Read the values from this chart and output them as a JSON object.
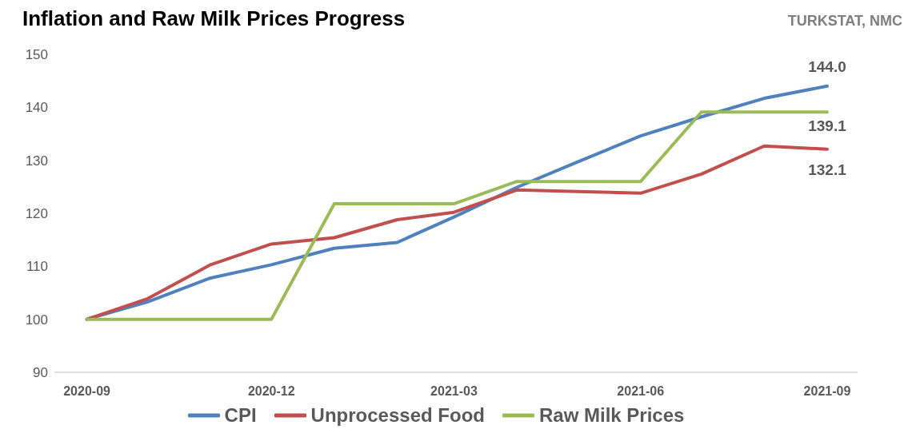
{
  "chart_data": {
    "type": "line",
    "title": "Inflation and Raw Milk Prices Progress",
    "annotations": [
      "TURKSTAT, NMC"
    ],
    "x": [
      "2020-09",
      "2020-10",
      "2020-11",
      "2020-12",
      "2021-01",
      "2021-02",
      "2021-03",
      "2021-04",
      "2021-05",
      "2021-06",
      "2021-07",
      "2021-08",
      "2021-09"
    ],
    "series": [
      {
        "name": "CPI",
        "color": "#4f81bd",
        "values": [
          100,
          103.3,
          107.8,
          110.3,
          113.4,
          114.5,
          119.3,
          124.9,
          129.7,
          134.6,
          138.2,
          141.7,
          144.0
        ],
        "value_labels": [
          null,
          null,
          null,
          null,
          null,
          null,
          null,
          null,
          null,
          null,
          null,
          null,
          "144.0"
        ]
      },
      {
        "name": "Unprocessed Food",
        "color": "#c0504d",
        "values": [
          100,
          103.9,
          110.3,
          114.2,
          115.4,
          118.8,
          120.2,
          124.4,
          124.1,
          123.8,
          127.4,
          132.7,
          132.1
        ],
        "value_labels": [
          null,
          null,
          null,
          null,
          null,
          null,
          null,
          null,
          null,
          null,
          null,
          null,
          "132.1"
        ]
      },
      {
        "name": "Raw Milk Prices",
        "color": "#9bbb59",
        "values": [
          100,
          100,
          100,
          100,
          121.8,
          121.8,
          121.8,
          126.0,
          126.0,
          126.0,
          139.1,
          139.1,
          139.1
        ],
        "value_labels": [
          null,
          null,
          null,
          null,
          null,
          null,
          null,
          null,
          null,
          null,
          null,
          null,
          "139.1"
        ]
      }
    ],
    "xlim": [
      "2020-08-16",
      "2021-09-16"
    ],
    "xticks": [
      "2020-09",
      "2020-12",
      "2021-03",
      "2021-06",
      "2021-09"
    ],
    "ylim": [
      90,
      150
    ],
    "yticks": [
      90,
      100,
      110,
      120,
      130,
      140,
      150
    ],
    "grid": false,
    "legend": "bottom",
    "marker": "none",
    "line_style": "solid"
  }
}
